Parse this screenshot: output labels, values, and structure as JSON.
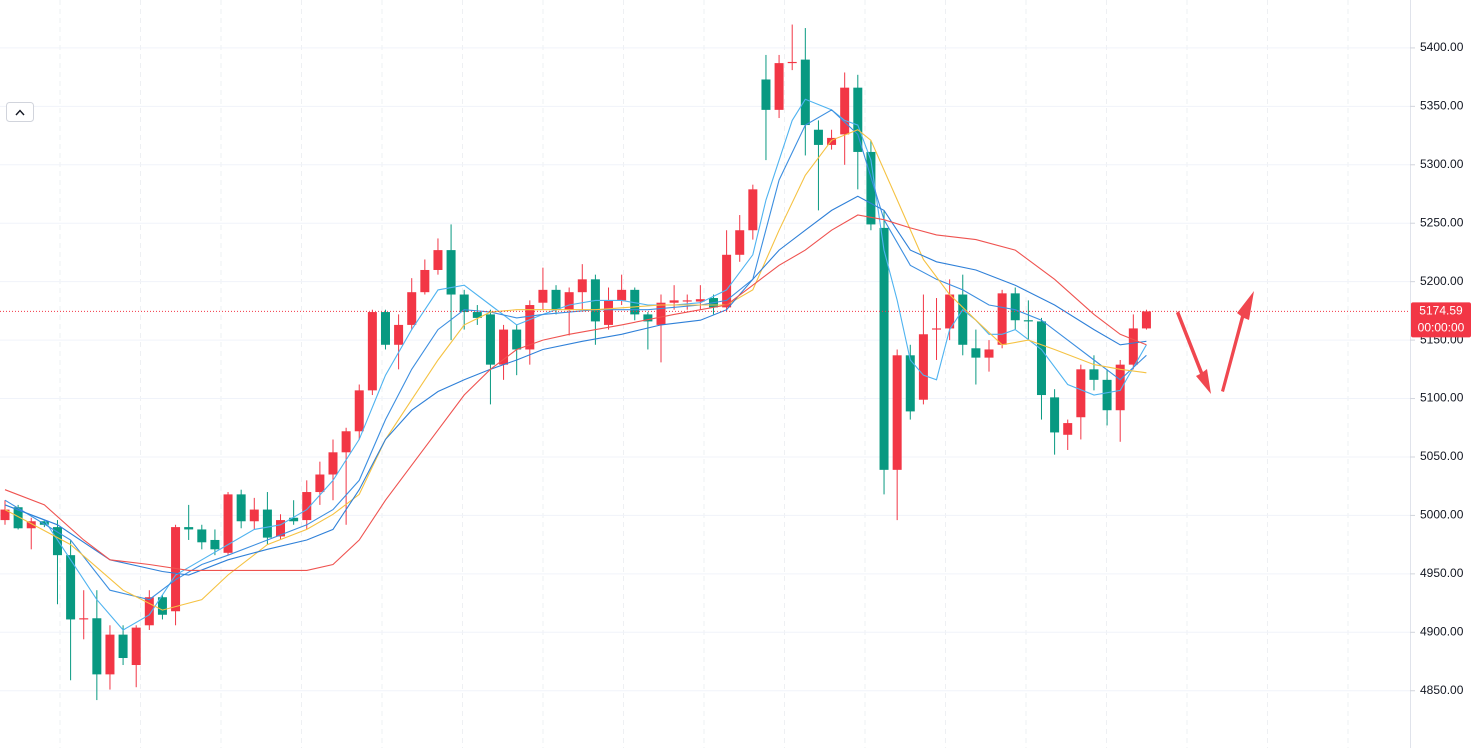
{
  "chart_data": {
    "type": "candlestick",
    "open": [
      4996,
      5007,
      4989,
      4995,
      4990,
      4966,
      4911,
      4912,
      4864,
      4898,
      4872,
      4906,
      4930,
      4918,
      4990,
      4988,
      4979,
      4968,
      5018,
      4995,
      5005,
      4982,
      4998,
      4996,
      5020,
      5035,
      5054,
      5072,
      5107,
      5174,
      5146,
      5163,
      5191,
      5210,
      5227,
      5189,
      5174,
      5172,
      5129,
      5159,
      5142,
      5182,
      5193,
      5176,
      5191,
      5202,
      5163,
      5184,
      5193,
      5172,
      5163,
      5182,
      5183,
      5183,
      5186,
      5178,
      5223,
      5244,
      5373,
      5347,
      5387,
      5390,
      5330,
      5317,
      5326,
      5366,
      5311,
      5246,
      5039,
      5137,
      5099,
      5159,
      5160,
      5189,
      5143,
      5135,
      5146,
      5190,
      5167,
      5166,
      5101,
      5069,
      5084,
      5125,
      5116,
      5090,
      5129,
      5160
    ],
    "high": [
      5013,
      5009,
      4998,
      4996,
      4996,
      4979,
      4936,
      4936,
      4906,
      4906,
      4906,
      4936,
      4932,
      4992,
      5009,
      4992,
      4988,
      5020,
      5022,
      5015,
      5020,
      5001,
      5013,
      5030,
      5046,
      5065,
      5075,
      5112,
      5176,
      5176,
      5172,
      5203,
      5219,
      5237,
      5249,
      5193,
      5180,
      5176,
      5163,
      5163,
      5184,
      5212,
      5197,
      5195,
      5215,
      5206,
      5195,
      5206,
      5195,
      5174,
      5189,
      5197,
      5189,
      5197,
      5189,
      5244,
      5257,
      5283,
      5394,
      5394,
      5420,
      5417,
      5338,
      5330,
      5379,
      5377,
      5321,
      5261,
      5142,
      5146,
      5189,
      5186,
      5202,
      5206,
      5159,
      5150,
      5193,
      5195,
      5184,
      5169,
      5108,
      5082,
      5129,
      5137,
      5125,
      5133,
      5172,
      5176
    ],
    "low": [
      4992,
      4988,
      4971,
      4990,
      4924,
      4859,
      4894,
      4842,
      4851,
      4872,
      4853,
      4902,
      4911,
      4906,
      4979,
      4971,
      4966,
      4966,
      4989,
      4988,
      4975,
      4979,
      4992,
      4988,
      5009,
      5013,
      4992,
      5065,
      5103,
      5142,
      5125,
      5159,
      5189,
      5206,
      5150,
      5159,
      5163,
      5095,
      5116,
      5120,
      5129,
      5176,
      5172,
      5154,
      5176,
      5146,
      5159,
      5180,
      5167,
      5142,
      5131,
      5176,
      5176,
      5176,
      5172,
      5174,
      5217,
      5236,
      5304,
      5340,
      5381,
      5308,
      5261,
      5313,
      5300,
      5279,
      5244,
      5018,
      4996,
      5082,
      5095,
      5133,
      5150,
      5137,
      5112,
      5123,
      5143,
      5159,
      5150,
      5082,
      5052,
      5056,
      5065,
      5107,
      5077,
      5063,
      5125,
      5159
    ],
    "close": [
      5005,
      4989,
      4995,
      4992,
      4966,
      4911,
      4912,
      4864,
      4898,
      4878,
      4904,
      4930,
      4915,
      4990,
      4988,
      4977,
      4971,
      5018,
      4995,
      5005,
      4981,
      4996,
      4995,
      5020,
      5035,
      5054,
      5072,
      5107,
      5174,
      5146,
      5163,
      5191,
      5210,
      5227,
      5189,
      5174,
      5169,
      5129,
      5159,
      5142,
      5180,
      5193,
      5176,
      5191,
      5202,
      5166,
      5184,
      5193,
      5172,
      5166,
      5182,
      5184,
      5184,
      5185,
      5178,
      5223,
      5244,
      5279,
      5347,
      5387,
      5388,
      5334,
      5317,
      5323,
      5366,
      5311,
      5249,
      5039,
      5137,
      5089,
      5155,
      5160,
      5189,
      5146,
      5135,
      5142,
      5190,
      5167,
      5166,
      5103,
      5071,
      5079,
      5125,
      5116,
      5090,
      5129,
      5160,
      5174.59
    ],
    "colors": {
      "up": "#f23645",
      "down": "#089981"
    },
    "ma_lines": [
      {
        "color": "#4fb3f0",
        "x": [
          0,
          3,
          5,
          7,
          9,
          11,
          13,
          15,
          17,
          19,
          21,
          23,
          25,
          27,
          29,
          31,
          33,
          35,
          37,
          39,
          41,
          43,
          45,
          47,
          49,
          51,
          53,
          55,
          57,
          58,
          60,
          61,
          63,
          64,
          65,
          66,
          67,
          68,
          69,
          70,
          71,
          72,
          73,
          74,
          75,
          76,
          77,
          79,
          81,
          83,
          85,
          87
        ],
        "values": [
          5009,
          4996,
          4962,
          4928,
          4902,
          4915,
          4949,
          4962,
          4975,
          4988,
          4992,
          5005,
          5030,
          5065,
          5120,
          5159,
          5193,
          5197,
          5180,
          5163,
          5172,
          5180,
          5184,
          5184,
          5180,
          5180,
          5182,
          5193,
          5223,
          5270,
          5338,
          5356,
          5347,
          5338,
          5334,
          5304,
          5227,
          5184,
          5133,
          5120,
          5116,
          5159,
          5176,
          5167,
          5155,
          5155,
          5159,
          5142,
          5112,
          5103,
          5107,
          5146
        ]
      },
      {
        "color": "#3d8fe0",
        "x": [
          0,
          5,
          8,
          11,
          13,
          15,
          17,
          20,
          23,
          25,
          27,
          29,
          31,
          33,
          35,
          37,
          39,
          41,
          45,
          49,
          53,
          55,
          57,
          59,
          61,
          63,
          65,
          67,
          69,
          71,
          73,
          75,
          77,
          79,
          81,
          83,
          85,
          87
        ],
        "values": [
          5013,
          4979,
          4936,
          4928,
          4945,
          4958,
          4966,
          4979,
          4992,
          5005,
          5030,
          5082,
          5125,
          5159,
          5176,
          5174,
          5169,
          5172,
          5176,
          5176,
          5180,
          5184,
          5202,
          5287,
          5334,
          5347,
          5326,
          5253,
          5214,
          5202,
          5193,
          5180,
          5176,
          5167,
          5150,
          5133,
          5116,
          5137
        ]
      },
      {
        "color": "#f5c242",
        "x": [
          0,
          5,
          9,
          12,
          15,
          17,
          20,
          23,
          25,
          27,
          29,
          31,
          33,
          35,
          37,
          39,
          45,
          50,
          55,
          57,
          59,
          61,
          63,
          65,
          66,
          68,
          70,
          72,
          74,
          76,
          78,
          80,
          83,
          85,
          87
        ],
        "values": [
          5005,
          4975,
          4936,
          4919,
          4928,
          4949,
          4975,
          4988,
          5001,
          5018,
          5065,
          5099,
          5133,
          5163,
          5174,
          5176,
          5176,
          5180,
          5180,
          5193,
          5244,
          5291,
          5321,
          5330,
          5321,
          5270,
          5219,
          5189,
          5167,
          5146,
          5150,
          5142,
          5129,
          5125,
          5122
        ]
      },
      {
        "color": "#2f80d8",
        "x": [
          0,
          4,
          8,
          12,
          14,
          17,
          20,
          23,
          25,
          27,
          29,
          31,
          33,
          35,
          37,
          39,
          41,
          44,
          47,
          50,
          53,
          55,
          57,
          59,
          61,
          63,
          65,
          67,
          69,
          71,
          74,
          77,
          80,
          83,
          85,
          87
        ],
        "values": [
          5009,
          4992,
          4962,
          4952,
          4949,
          4962,
          4971,
          4979,
          4988,
          5022,
          5065,
          5090,
          5106,
          5116,
          5125,
          5133,
          5142,
          5149,
          5155,
          5163,
          5167,
          5176,
          5202,
          5227,
          5244,
          5261,
          5273,
          5261,
          5227,
          5217,
          5210,
          5197,
          5180,
          5159,
          5146,
          5149
        ]
      },
      {
        "color": "#ef5350",
        "x": [
          0,
          3,
          6,
          8,
          11,
          14,
          17,
          20,
          23,
          25,
          27,
          29,
          31,
          33,
          35,
          37,
          39,
          41,
          43,
          47,
          51,
          55,
          57,
          59,
          61,
          63,
          65,
          67,
          69,
          71,
          74,
          77,
          80,
          83,
          85,
          87
        ],
        "values": [
          5022,
          5009,
          4979,
          4962,
          4958,
          4953,
          4953,
          4953,
          4953,
          4958,
          4979,
          5013,
          5043,
          5073,
          5103,
          5125,
          5142,
          5150,
          5155,
          5163,
          5172,
          5180,
          5197,
          5214,
          5227,
          5244,
          5257,
          5253,
          5246,
          5240,
          5236,
          5227,
          5202,
          5172,
          5155,
          5146
        ]
      }
    ],
    "ylim": [
      4801,
      5441
    ],
    "yticks": [
      {
        "value": 4850,
        "label": "4850.00"
      },
      {
        "value": 4900,
        "label": "4900.00"
      },
      {
        "value": 4950,
        "label": "4950.00"
      },
      {
        "value": 5000,
        "label": "5000.00"
      },
      {
        "value": 5050,
        "label": "5050.00"
      },
      {
        "value": 5100,
        "label": "5100.00"
      },
      {
        "value": 5150,
        "label": "5150.00"
      },
      {
        "value": 5200,
        "label": "5200.00"
      },
      {
        "value": 5250,
        "label": "5250.00"
      },
      {
        "value": 5300,
        "label": "5300.00"
      },
      {
        "value": 5350,
        "label": "5350.00"
      },
      {
        "value": 5400,
        "label": "5400.00"
      }
    ],
    "grid": true,
    "last_price": 5174.59,
    "countdown": "00:00:00"
  }
}
